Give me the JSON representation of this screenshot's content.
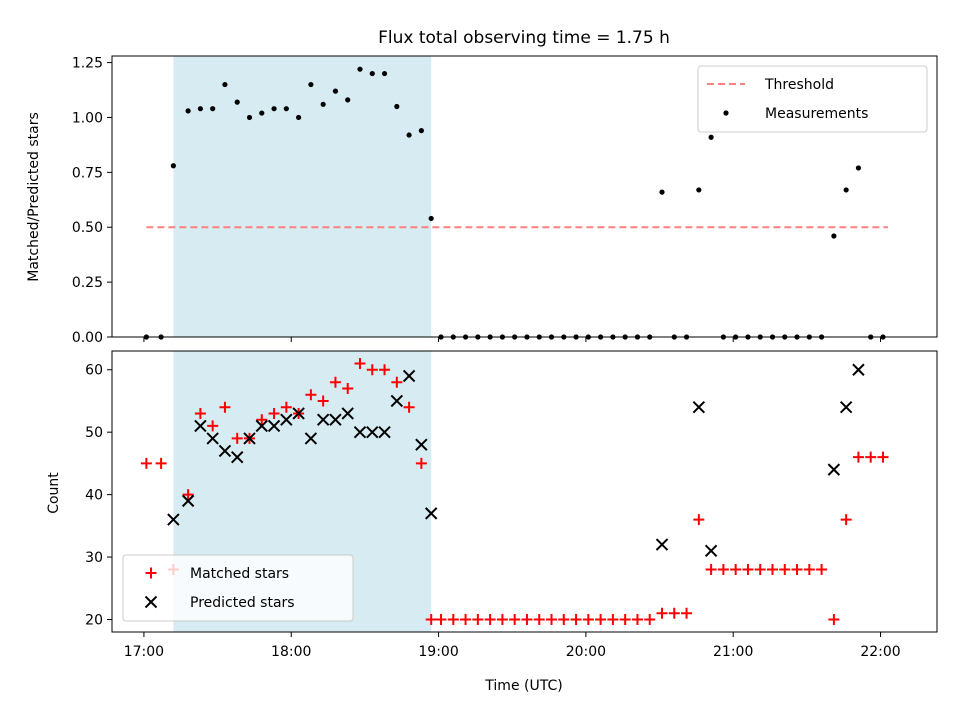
{
  "figure_title": "Flux total observing time = 1.75 h",
  "shade_color": "#add8e6",
  "chart_data": [
    {
      "type": "scatter",
      "ylabel": "Matched/Predicted stars",
      "ylim": [
        0,
        1.28
      ],
      "xlim": [
        "16:47",
        "22:23"
      ],
      "yticks": [
        0,
        0.25,
        0.5,
        0.75,
        1.0,
        1.25
      ],
      "ytick_labels": [
        "0.00",
        "0.25",
        "0.50",
        "0.75",
        "1.00",
        "1.25"
      ],
      "shaded_span": [
        "17:12",
        "18:57"
      ],
      "legend_position": "upper right",
      "legend_entries": [
        {
          "label": "Threshold",
          "kind": "dashed-line",
          "color": "#ff8080"
        },
        {
          "label": "Measurements",
          "kind": "dot",
          "color": "#000000"
        }
      ],
      "threshold": {
        "name": "Threshold",
        "value": 0.5,
        "x_start": "17:01",
        "x_end": "22:03",
        "color": "#ff8080"
      },
      "series": [
        {
          "name": "Measurements",
          "marker": "dot",
          "color": "#000000",
          "points": [
            [
              "17:01",
              0
            ],
            [
              "17:07",
              0
            ],
            [
              "17:12",
              0.78
            ],
            [
              "17:18",
              1.03
            ],
            [
              "17:23",
              1.04
            ],
            [
              "17:28",
              1.04
            ],
            [
              "17:33",
              1.15
            ],
            [
              "17:38",
              1.07
            ],
            [
              "17:43",
              1.0
            ],
            [
              "17:48",
              1.02
            ],
            [
              "17:53",
              1.04
            ],
            [
              "17:58",
              1.04
            ],
            [
              "18:03",
              1.0
            ],
            [
              "18:08",
              1.15
            ],
            [
              "18:13",
              1.06
            ],
            [
              "18:18",
              1.12
            ],
            [
              "18:23",
              1.08
            ],
            [
              "18:28",
              1.22
            ],
            [
              "18:33",
              1.2
            ],
            [
              "18:38",
              1.2
            ],
            [
              "18:43",
              1.05
            ],
            [
              "18:48",
              0.92
            ],
            [
              "18:53",
              0.94
            ],
            [
              "18:57",
              0.54
            ],
            [
              "19:01",
              0
            ],
            [
              "19:06",
              0
            ],
            [
              "19:11",
              0
            ],
            [
              "19:16",
              0
            ],
            [
              "19:21",
              0
            ],
            [
              "19:26",
              0
            ],
            [
              "19:31",
              0
            ],
            [
              "19:36",
              0
            ],
            [
              "19:41",
              0
            ],
            [
              "19:46",
              0
            ],
            [
              "19:51",
              0
            ],
            [
              "19:56",
              0
            ],
            [
              "20:01",
              0
            ],
            [
              "20:06",
              0
            ],
            [
              "20:11",
              0
            ],
            [
              "20:16",
              0
            ],
            [
              "20:21",
              0
            ],
            [
              "20:26",
              0
            ],
            [
              "20:31",
              0.66
            ],
            [
              "20:36",
              0
            ],
            [
              "20:41",
              0
            ],
            [
              "20:46",
              0.67
            ],
            [
              "20:51",
              0.91
            ],
            [
              "20:56",
              0
            ],
            [
              "21:01",
              0
            ],
            [
              "21:06",
              0
            ],
            [
              "21:11",
              0
            ],
            [
              "21:16",
              0
            ],
            [
              "21:21",
              0
            ],
            [
              "21:26",
              0
            ],
            [
              "21:31",
              0
            ],
            [
              "21:36",
              0
            ],
            [
              "21:41",
              0.46
            ],
            [
              "21:46",
              0.67
            ],
            [
              "21:51",
              0.77
            ],
            [
              "21:56",
              0
            ],
            [
              "22:01",
              0
            ]
          ]
        }
      ]
    },
    {
      "type": "scatter",
      "xlabel": "Time (UTC)",
      "ylabel": "Count",
      "ylim": [
        18,
        63
      ],
      "xlim": [
        "16:47",
        "22:23"
      ],
      "yticks": [
        20,
        30,
        40,
        50,
        60
      ],
      "ytick_labels": [
        "20",
        "30",
        "40",
        "50",
        "60"
      ],
      "xticks": [
        "17:00",
        "18:00",
        "19:00",
        "20:00",
        "21:00",
        "22:00"
      ],
      "xtick_labels": [
        "17:00",
        "18:00",
        "19:00",
        "20:00",
        "21:00",
        "22:00"
      ],
      "shaded_span": [
        "17:12",
        "18:57"
      ],
      "legend_position": "lower left",
      "legend_entries": [
        {
          "label": "Matched stars",
          "kind": "plus",
          "color": "#ff0000"
        },
        {
          "label": "Predicted stars",
          "kind": "x",
          "color": "#000000"
        }
      ],
      "series": [
        {
          "name": "Matched stars",
          "marker": "plus",
          "color": "#ff0000",
          "points": [
            [
              "17:01",
              45
            ],
            [
              "17:07",
              45
            ],
            [
              "17:12",
              28
            ],
            [
              "17:18",
              40
            ],
            [
              "17:23",
              53
            ],
            [
              "17:28",
              51
            ],
            [
              "17:33",
              54
            ],
            [
              "17:38",
              49
            ],
            [
              "17:43",
              49
            ],
            [
              "17:48",
              52
            ],
            [
              "17:53",
              53
            ],
            [
              "17:58",
              54
            ],
            [
              "18:03",
              53
            ],
            [
              "18:08",
              56
            ],
            [
              "18:13",
              55
            ],
            [
              "18:18",
              58
            ],
            [
              "18:23",
              57
            ],
            [
              "18:28",
              61
            ],
            [
              "18:33",
              60
            ],
            [
              "18:38",
              60
            ],
            [
              "18:43",
              58
            ],
            [
              "18:48",
              54
            ],
            [
              "18:53",
              45
            ],
            [
              "18:57",
              20
            ],
            [
              "19:01",
              20
            ],
            [
              "19:06",
              20
            ],
            [
              "19:11",
              20
            ],
            [
              "19:16",
              20
            ],
            [
              "19:21",
              20
            ],
            [
              "19:26",
              20
            ],
            [
              "19:31",
              20
            ],
            [
              "19:36",
              20
            ],
            [
              "19:41",
              20
            ],
            [
              "19:46",
              20
            ],
            [
              "19:51",
              20
            ],
            [
              "19:56",
              20
            ],
            [
              "20:01",
              20
            ],
            [
              "20:06",
              20
            ],
            [
              "20:11",
              20
            ],
            [
              "20:16",
              20
            ],
            [
              "20:21",
              20
            ],
            [
              "20:26",
              20
            ],
            [
              "20:31",
              21
            ],
            [
              "20:36",
              21
            ],
            [
              "20:41",
              21
            ],
            [
              "20:46",
              36
            ],
            [
              "20:51",
              28
            ],
            [
              "20:56",
              28
            ],
            [
              "21:01",
              28
            ],
            [
              "21:06",
              28
            ],
            [
              "21:11",
              28
            ],
            [
              "21:16",
              28
            ],
            [
              "21:21",
              28
            ],
            [
              "21:26",
              28
            ],
            [
              "21:31",
              28
            ],
            [
              "21:36",
              28
            ],
            [
              "21:41",
              20
            ],
            [
              "21:46",
              36
            ],
            [
              "21:51",
              46
            ],
            [
              "21:56",
              46
            ],
            [
              "22:01",
              46
            ]
          ]
        },
        {
          "name": "Predicted stars",
          "marker": "x",
          "color": "#000000",
          "points": [
            [
              "17:12",
              36
            ],
            [
              "17:18",
              39
            ],
            [
              "17:23",
              51
            ],
            [
              "17:28",
              49
            ],
            [
              "17:33",
              47
            ],
            [
              "17:38",
              46
            ],
            [
              "17:43",
              49
            ],
            [
              "17:48",
              51
            ],
            [
              "17:53",
              51
            ],
            [
              "17:58",
              52
            ],
            [
              "18:03",
              53
            ],
            [
              "18:08",
              49
            ],
            [
              "18:13",
              52
            ],
            [
              "18:18",
              52
            ],
            [
              "18:23",
              53
            ],
            [
              "18:28",
              50
            ],
            [
              "18:33",
              50
            ],
            [
              "18:38",
              50
            ],
            [
              "18:43",
              55
            ],
            [
              "18:48",
              59
            ],
            [
              "18:53",
              48
            ],
            [
              "18:57",
              37
            ],
            [
              "20:31",
              32
            ],
            [
              "20:46",
              54
            ],
            [
              "20:51",
              31
            ],
            [
              "21:41",
              44
            ],
            [
              "21:46",
              54
            ],
            [
              "21:51",
              60
            ]
          ]
        }
      ]
    }
  ]
}
